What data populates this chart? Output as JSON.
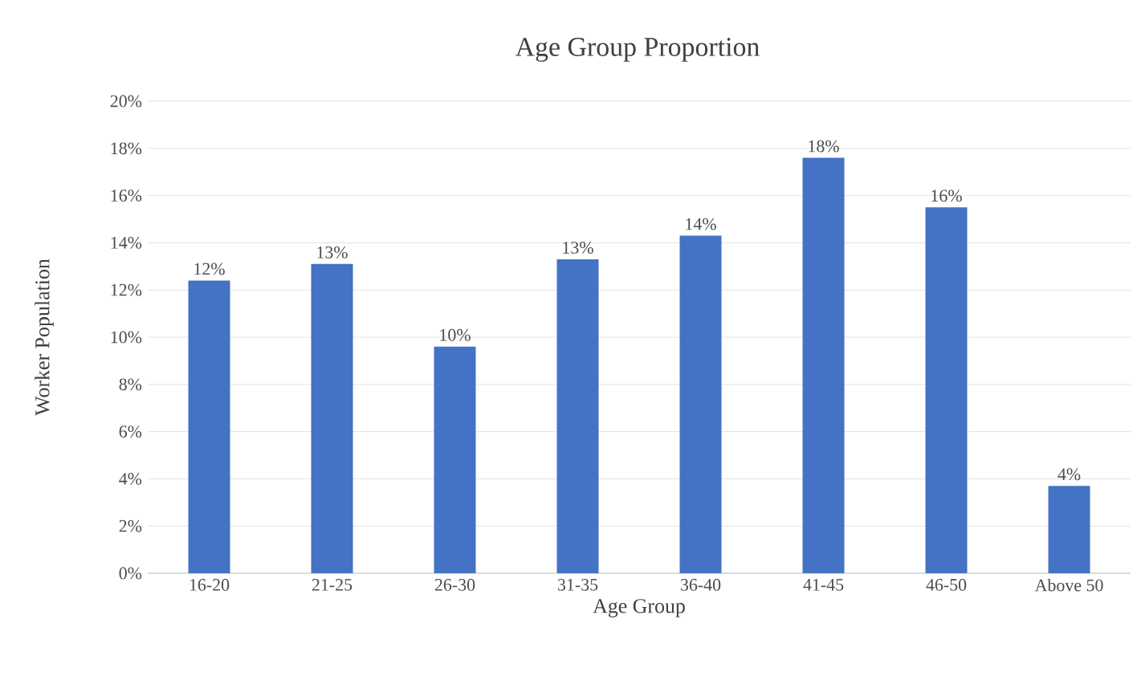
{
  "chart_data": {
    "type": "bar",
    "title": "Age Group Proportion",
    "xlabel": "Age Group",
    "ylabel": "Worker Population",
    "categories": [
      "16-20",
      "21-25",
      "26-30",
      "31-35",
      "36-40",
      "41-45",
      "46-50",
      "Above 50"
    ],
    "values": [
      12.4,
      13.1,
      9.6,
      13.3,
      14.3,
      17.6,
      15.5,
      3.7
    ],
    "value_labels": [
      "12%",
      "13%",
      "10%",
      "13%",
      "14%",
      "18%",
      "16%",
      "4%"
    ],
    "color": "#4472c4",
    "ylim": [
      0,
      20
    ],
    "yticks": [
      {
        "value": 0,
        "label": "0%"
      },
      {
        "value": 2,
        "label": "2%"
      },
      {
        "value": 4,
        "label": "4%"
      },
      {
        "value": 6,
        "label": "6%"
      },
      {
        "value": 8,
        "label": "8%"
      },
      {
        "value": 10,
        "label": "10%"
      },
      {
        "value": 12,
        "label": "12%"
      },
      {
        "value": 14,
        "label": "14%"
      },
      {
        "value": 16,
        "label": "16%"
      },
      {
        "value": 18,
        "label": "18%"
      },
      {
        "value": 20,
        "label": "20%"
      }
    ],
    "grid": "y"
  }
}
